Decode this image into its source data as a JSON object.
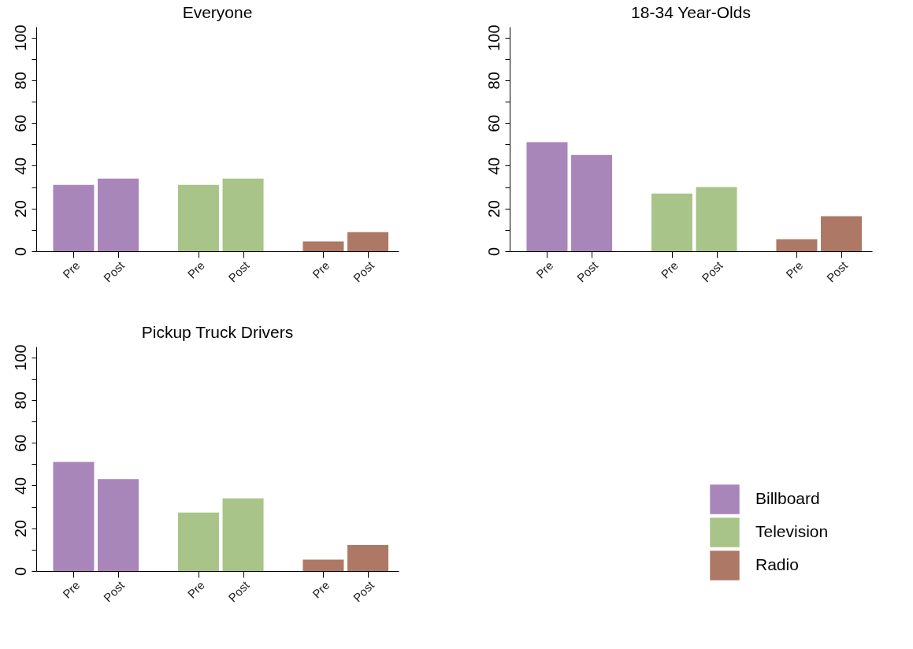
{
  "chart_data": [
    {
      "type": "bar",
      "title": "Everyone",
      "categories": [
        "Pre",
        "Post",
        "Pre",
        "Post",
        "Pre",
        "Post"
      ],
      "ylim": [
        0,
        105
      ],
      "yticks": [
        0,
        {
          "value": 10,
          "label": null
        },
        20,
        {
          "value": 30,
          "label": null
        },
        40,
        {
          "value": 50,
          "label": null
        },
        60,
        {
          "value": 70,
          "label": null
        },
        80,
        {
          "value": 90,
          "label": null
        },
        100
      ],
      "grid": false,
      "series": [
        {
          "color": "#a886ba",
          "values": [
            31,
            34,
            null,
            null,
            null,
            null
          ]
        },
        {
          "color": "#a8c489",
          "values": [
            null,
            null,
            31,
            34,
            null,
            null
          ]
        },
        {
          "color": "#ad7866",
          "values": [
            null,
            null,
            null,
            null,
            4.6,
            8.9
          ]
        }
      ]
    },
    {
      "type": "bar",
      "title": "18-34 Year-Olds",
      "categories": [
        "Pre",
        "Post",
        "Pre",
        "Post",
        "Pre",
        "Post"
      ],
      "ylim": [
        0,
        105
      ],
      "yticks": [
        0,
        {
          "value": 10,
          "label": null
        },
        20,
        {
          "value": 30,
          "label": null
        },
        40,
        {
          "value": 50,
          "label": null
        },
        60,
        {
          "value": 70,
          "label": null
        },
        80,
        {
          "value": 90,
          "label": null
        },
        100
      ],
      "grid": false,
      "series": [
        {
          "color": "#a886ba",
          "values": [
            51,
            45,
            null,
            null,
            null,
            null
          ]
        },
        {
          "color": "#a8c489",
          "values": [
            null,
            null,
            27,
            30,
            null,
            null
          ]
        },
        {
          "color": "#ad7866",
          "values": [
            null,
            null,
            null,
            null,
            5.6,
            16.4
          ]
        }
      ]
    },
    {
      "type": "bar",
      "title": "Pickup Truck Drivers",
      "categories": [
        "Pre",
        "Post",
        "Pre",
        "Post",
        "Pre",
        "Post"
      ],
      "ylim": [
        0,
        105
      ],
      "yticks": [
        0,
        {
          "value": 10,
          "label": null
        },
        20,
        {
          "value": 30,
          "label": null
        },
        40,
        {
          "value": 50,
          "label": null
        },
        60,
        {
          "value": 70,
          "label": null
        },
        80,
        {
          "value": 90,
          "label": null
        },
        100
      ],
      "grid": false,
      "legend": "bottom right",
      "series": [
        {
          "name": "Billboard",
          "color": "#a886ba",
          "values": [
            51,
            43,
            null,
            null,
            null,
            null
          ]
        },
        {
          "name": "Television",
          "color": "#a8c489",
          "values": [
            null,
            null,
            27.4,
            34,
            null,
            null
          ]
        },
        {
          "name": "Radio",
          "color": "#ad7866",
          "values": [
            null,
            null,
            null,
            null,
            5.3,
            12.2
          ]
        }
      ]
    }
  ]
}
